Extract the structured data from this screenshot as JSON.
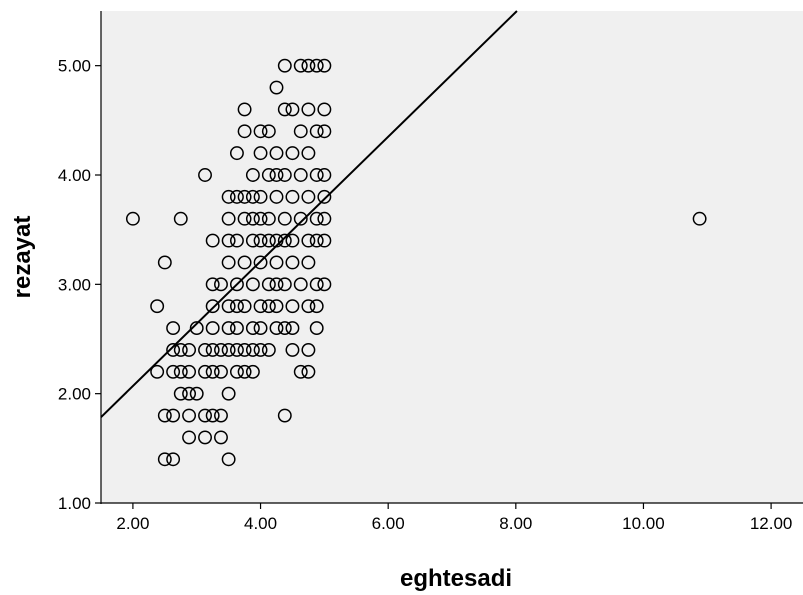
{
  "chart_data": {
    "type": "scatter",
    "title": "",
    "xlabel": "eghtesadi",
    "ylabel": "rezayat",
    "xlim": [
      1.5,
      12.5
    ],
    "ylim": [
      1.0,
      5.5
    ],
    "xticks": [
      2.0,
      4.0,
      6.0,
      8.0,
      10.0,
      12.0
    ],
    "xtick_labels": [
      "2.00",
      "4.00",
      "6.00",
      "8.00",
      "10.00",
      "12.00"
    ],
    "yticks": [
      1.0,
      2.0,
      3.0,
      4.0,
      5.0
    ],
    "ytick_labels": [
      "1.00",
      "2.00",
      "3.00",
      "4.00",
      "5.00"
    ],
    "grid": false,
    "background": "#f0f0f0",
    "marker": "hollow-circle",
    "fit_line": {
      "slope": 0.57,
      "intercept": 0.93
    },
    "points": [
      [
        2.0,
        3.6
      ],
      [
        2.5,
        3.2
      ],
      [
        2.38,
        2.8
      ],
      [
        2.75,
        3.6
      ],
      [
        3.13,
        4.0
      ],
      [
        2.5,
        1.4
      ],
      [
        2.63,
        1.4
      ],
      [
        2.5,
        1.8
      ],
      [
        2.63,
        1.8
      ],
      [
        2.88,
        1.6
      ],
      [
        2.38,
        2.2
      ],
      [
        2.63,
        2.2
      ],
      [
        2.75,
        2.2
      ],
      [
        2.88,
        2.2
      ],
      [
        2.63,
        2.4
      ],
      [
        2.75,
        2.4
      ],
      [
        2.88,
        2.4
      ],
      [
        2.63,
        2.6
      ],
      [
        2.75,
        2.0
      ],
      [
        2.88,
        2.0
      ],
      [
        3.0,
        2.0
      ],
      [
        2.88,
        1.8
      ],
      [
        3.0,
        2.6
      ],
      [
        3.13,
        2.4
      ],
      [
        3.25,
        2.4
      ],
      [
        3.13,
        2.2
      ],
      [
        3.25,
        2.2
      ],
      [
        3.13,
        1.8
      ],
      [
        3.25,
        1.8
      ],
      [
        3.38,
        1.8
      ],
      [
        3.13,
        1.6
      ],
      [
        3.38,
        1.6
      ],
      [
        3.5,
        1.4
      ],
      [
        3.5,
        2.0
      ],
      [
        3.38,
        2.2
      ],
      [
        3.38,
        2.4
      ],
      [
        3.25,
        2.6
      ],
      [
        3.25,
        2.8
      ],
      [
        3.25,
        3.0
      ],
      [
        3.25,
        3.4
      ],
      [
        3.38,
        3.0
      ],
      [
        3.5,
        3.2
      ],
      [
        3.5,
        3.4
      ],
      [
        3.5,
        3.6
      ],
      [
        3.5,
        3.8
      ],
      [
        3.5,
        2.8
      ],
      [
        3.5,
        2.6
      ],
      [
        3.5,
        2.4
      ],
      [
        3.63,
        2.2
      ],
      [
        3.63,
        2.4
      ],
      [
        3.63,
        2.6
      ],
      [
        3.63,
        2.8
      ],
      [
        3.63,
        3.0
      ],
      [
        3.63,
        3.4
      ],
      [
        3.63,
        3.8
      ],
      [
        3.63,
        4.2
      ],
      [
        3.75,
        4.4
      ],
      [
        3.75,
        4.6
      ],
      [
        3.75,
        3.8
      ],
      [
        3.75,
        3.6
      ],
      [
        3.75,
        3.2
      ],
      [
        3.75,
        2.8
      ],
      [
        3.75,
        2.4
      ],
      [
        3.75,
        2.2
      ],
      [
        3.88,
        2.2
      ],
      [
        3.88,
        2.4
      ],
      [
        3.88,
        2.6
      ],
      [
        3.88,
        3.0
      ],
      [
        3.88,
        3.4
      ],
      [
        3.88,
        3.6
      ],
      [
        3.88,
        3.8
      ],
      [
        3.88,
        4.0
      ],
      [
        4.0,
        4.4
      ],
      [
        4.0,
        4.2
      ],
      [
        4.0,
        3.8
      ],
      [
        4.0,
        3.6
      ],
      [
        4.0,
        3.4
      ],
      [
        4.0,
        3.2
      ],
      [
        4.0,
        2.8
      ],
      [
        4.0,
        2.6
      ],
      [
        4.0,
        2.4
      ],
      [
        4.13,
        4.4
      ],
      [
        4.13,
        4.0
      ],
      [
        4.13,
        3.6
      ],
      [
        4.13,
        3.4
      ],
      [
        4.13,
        3.0
      ],
      [
        4.13,
        2.8
      ],
      [
        4.13,
        2.4
      ],
      [
        4.25,
        4.2
      ],
      [
        4.25,
        4.0
      ],
      [
        4.25,
        3.8
      ],
      [
        4.25,
        3.4
      ],
      [
        4.25,
        3.2
      ],
      [
        4.25,
        3.0
      ],
      [
        4.25,
        2.8
      ],
      [
        4.25,
        2.6
      ],
      [
        4.25,
        4.8
      ],
      [
        4.38,
        5.0
      ],
      [
        4.38,
        4.6
      ],
      [
        4.38,
        4.0
      ],
      [
        4.38,
        3.6
      ],
      [
        4.38,
        3.4
      ],
      [
        4.38,
        3.0
      ],
      [
        4.38,
        2.6
      ],
      [
        4.38,
        1.8
      ],
      [
        4.5,
        4.6
      ],
      [
        4.5,
        4.2
      ],
      [
        4.5,
        3.8
      ],
      [
        4.5,
        3.4
      ],
      [
        4.5,
        3.2
      ],
      [
        4.5,
        2.8
      ],
      [
        4.5,
        2.6
      ],
      [
        4.5,
        2.4
      ],
      [
        4.63,
        5.0
      ],
      [
        4.63,
        4.4
      ],
      [
        4.63,
        4.0
      ],
      [
        4.63,
        3.6
      ],
      [
        4.63,
        3.0
      ],
      [
        4.63,
        2.2
      ],
      [
        4.75,
        5.0
      ],
      [
        4.75,
        4.6
      ],
      [
        4.75,
        4.2
      ],
      [
        4.75,
        3.8
      ],
      [
        4.75,
        3.4
      ],
      [
        4.75,
        3.2
      ],
      [
        4.75,
        2.8
      ],
      [
        4.75,
        2.4
      ],
      [
        4.75,
        2.2
      ],
      [
        4.88,
        5.0
      ],
      [
        4.88,
        4.4
      ],
      [
        4.88,
        4.0
      ],
      [
        4.88,
        3.6
      ],
      [
        4.88,
        3.4
      ],
      [
        4.88,
        3.0
      ],
      [
        4.88,
        2.8
      ],
      [
        4.88,
        2.6
      ],
      [
        5.0,
        5.0
      ],
      [
        5.0,
        4.6
      ],
      [
        5.0,
        4.4
      ],
      [
        5.0,
        4.0
      ],
      [
        5.0,
        3.8
      ],
      [
        5.0,
        3.6
      ],
      [
        5.0,
        3.4
      ],
      [
        5.0,
        3.0
      ],
      [
        10.88,
        3.6
      ]
    ]
  }
}
